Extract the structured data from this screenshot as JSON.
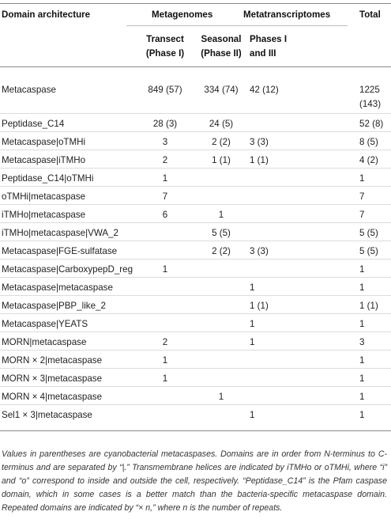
{
  "header": {
    "domain_architecture": "Domain architecture",
    "metagenomes": "Metagenomes",
    "metatranscriptomes": "Metatranscriptomes",
    "total": "Total",
    "transect_line1": "Transect",
    "transect_line2": "(Phase I)",
    "seasonal_line1": "Seasonal",
    "seasonal_line2": "(Phase II)",
    "phases_line1": "Phases I",
    "phases_line2": "and III"
  },
  "rows": [
    {
      "domain": "Metacaspase",
      "transect": "849 (57)",
      "seasonal": "334 (74)",
      "metatranscriptomes": "42 (12)",
      "total": "1225",
      "total_line2": "(143)"
    },
    {
      "domain": "Peptidase_C14",
      "transect": "28 (3)",
      "seasonal": "24 (5)",
      "metatranscriptomes": "",
      "total": "52 (8)"
    },
    {
      "domain": "Metacaspase|oTMHi",
      "transect": "3",
      "seasonal": "2 (2)",
      "metatranscriptomes": "3 (3)",
      "total": "8 (5)"
    },
    {
      "domain": "Metacaspase|iTMHo",
      "transect": "2",
      "seasonal": "1 (1)",
      "metatranscriptomes": "1 (1)",
      "total": "4 (2)"
    },
    {
      "domain": "Peptidase_C14|oTMHi",
      "transect": "1",
      "seasonal": "",
      "metatranscriptomes": "",
      "total": "1"
    },
    {
      "domain": "oTMHi|metacaspase",
      "transect": "7",
      "seasonal": "",
      "metatranscriptomes": "",
      "total": "7"
    },
    {
      "domain": "iTMHo|metacaspase",
      "transect": "6",
      "seasonal": "1",
      "metatranscriptomes": "",
      "total": "7"
    },
    {
      "domain": "iTMHo|metacaspase|VWA_2",
      "transect": "",
      "seasonal": "5 (5)",
      "metatranscriptomes": "",
      "total": "5 (5)"
    },
    {
      "domain": "Metacaspase|FGE-sulfatase",
      "transect": "",
      "seasonal": "2 (2)",
      "metatranscriptomes": "3 (3)",
      "total": "5 (5)"
    },
    {
      "domain": "Metacaspase|CarboxypepD_reg",
      "transect": "1",
      "seasonal": "",
      "metatranscriptomes": "",
      "total": "1"
    },
    {
      "domain": "Metacaspase|metacaspase",
      "transect": "",
      "seasonal": "",
      "metatranscriptomes": "1",
      "total": "1"
    },
    {
      "domain": "Metacaspase|PBP_like_2",
      "transect": "",
      "seasonal": "",
      "metatranscriptomes": "1 (1)",
      "total": "1 (1)"
    },
    {
      "domain": "Metacaspase|YEATS",
      "transect": "",
      "seasonal": "",
      "metatranscriptomes": "1",
      "total": "1"
    },
    {
      "domain": "MORN|metacaspase",
      "transect": "2",
      "seasonal": "",
      "metatranscriptomes": "1",
      "total": "3"
    },
    {
      "domain": "MORN × 2|metacaspase",
      "transect": "1",
      "seasonal": "",
      "metatranscriptomes": "",
      "total": "1"
    },
    {
      "domain": "MORN × 3|metacaspase",
      "transect": "1",
      "seasonal": "",
      "metatranscriptomes": "",
      "total": "1"
    },
    {
      "domain": "MORN × 4|metacaspase",
      "transect": "",
      "seasonal": "1",
      "metatranscriptomes": "",
      "total": "1"
    },
    {
      "domain": "Sel1 × 3|metacaspase",
      "transect": "",
      "seasonal": "",
      "metatranscriptomes": "1",
      "total": "1"
    }
  ],
  "footnote": "Values in parentheses are cyanobacterial metacaspases. Domains are in order from N-terminus to C-terminus and are separated by “|.” Transmembrane helices are indicated by iTMHo or oTMHi, where “i” and “o” correspond to inside and outside the cell, respectively. “Peptidase_C14” is the Pfam caspase domain, which in some cases is a better match than the bacteria-specific metacaspase domain. Repeated domains are indicated by “× n,” where n is the number of repeats."
}
